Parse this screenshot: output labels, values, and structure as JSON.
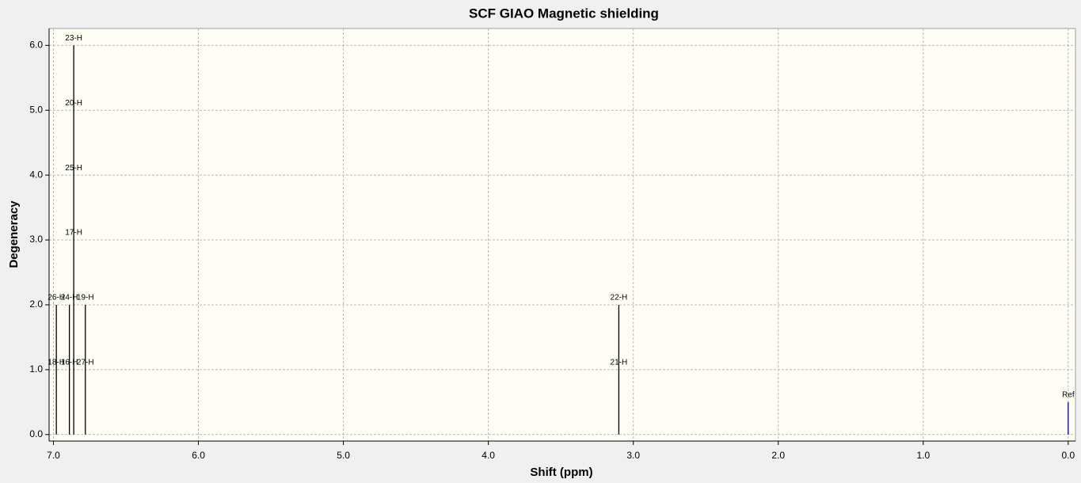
{
  "chart_data": {
    "type": "stick",
    "title": "SCF GIAO Magnetic shielding",
    "x_label": "Shift (ppm)",
    "y_label": "Degeneracy",
    "xlim": [
      7.03,
      -0.05
    ],
    "ylim": [
      -0.1,
      6.26
    ],
    "xticks": [
      {
        "value": 7,
        "label": "7.0"
      },
      {
        "value": 6,
        "label": "6.0"
      },
      {
        "value": 5,
        "label": "5.0"
      },
      {
        "value": 4,
        "label": "4.0"
      },
      {
        "value": 3,
        "label": "3.0"
      },
      {
        "value": 2,
        "label": "2.0"
      },
      {
        "value": 1,
        "label": "1.0"
      },
      {
        "value": 0,
        "label": "0.0"
      }
    ],
    "yticks": [
      {
        "value": 0,
        "label": "0.0"
      },
      {
        "value": 1,
        "label": "1.0"
      },
      {
        "value": 2,
        "label": "2.0"
      },
      {
        "value": 3,
        "label": "3.0"
      },
      {
        "value": 4,
        "label": "4.0"
      },
      {
        "value": 5,
        "label": "5.0"
      },
      {
        "value": 6,
        "label": "6.0"
      }
    ],
    "grid": true,
    "series": [
      {
        "name": "Peaks",
        "color": "#000000",
        "x": [
          6.98,
          6.89,
          6.86,
          6.78,
          3.1
        ],
        "values": [
          2,
          2,
          6,
          2,
          2
        ]
      },
      {
        "name": "Ref",
        "color": "#000080",
        "x": [
          0
        ],
        "values": [
          0.5
        ]
      }
    ],
    "annotations": [
      {
        "text": "26-H",
        "x": 6.98,
        "y": 2
      },
      {
        "text": "24-H",
        "x": 6.89,
        "y": 2
      },
      {
        "text": "19-H",
        "x": 6.78,
        "y": 2
      },
      {
        "text": "18-H",
        "x": 6.98,
        "y": 1
      },
      {
        "text": "16-H",
        "x": 6.89,
        "y": 1
      },
      {
        "text": "27-H",
        "x": 6.78,
        "y": 1
      },
      {
        "text": "17-H",
        "x": 6.86,
        "y": 3
      },
      {
        "text": "25-H",
        "x": 6.86,
        "y": 4
      },
      {
        "text": "20-H",
        "x": 6.86,
        "y": 5
      },
      {
        "text": "23-H",
        "x": 6.86,
        "y": 6
      },
      {
        "text": "22-H",
        "x": 3.1,
        "y": 2
      },
      {
        "text": "21-H",
        "x": 3.1,
        "y": 1
      },
      {
        "text": "Ref",
        "x": 0,
        "y": 0.5
      }
    ]
  }
}
